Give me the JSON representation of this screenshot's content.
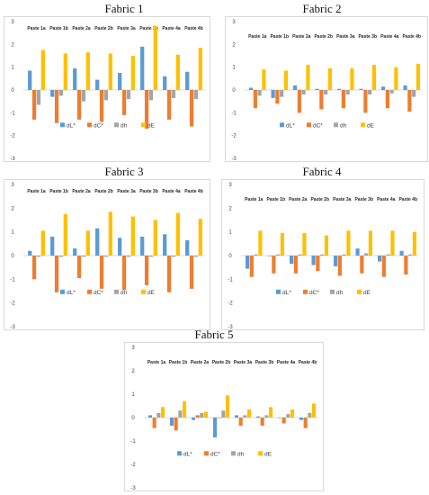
{
  "chart_data": [
    {
      "type": "bar",
      "title": "Fabric 1",
      "categories": [
        "Paste 1a",
        "Paste 1b",
        "Paste 2a",
        "Paste 2b",
        "Paste 3a",
        "Paste 3b",
        "Paste 4a",
        "Paste 4b"
      ],
      "ylim": [
        -3,
        3
      ],
      "yticks": [
        3,
        2,
        1,
        0,
        -1,
        -2,
        -3
      ],
      "legend_position": "bottom-center",
      "series": [
        {
          "name": "dL*",
          "color": "#5B9BD5",
          "values": [
            0.85,
            -0.3,
            0.95,
            0.45,
            0.75,
            1.9,
            0.6,
            0.8
          ]
        },
        {
          "name": "dC*",
          "color": "#ED7D31",
          "values": [
            -1.3,
            -1.45,
            -1.3,
            -1.4,
            -1.1,
            -1.7,
            -1.3,
            -1.6
          ]
        },
        {
          "name": "dh",
          "color": "#A5A5A5",
          "values": [
            -0.65,
            -0.25,
            -0.5,
            -0.45,
            -0.4,
            -0.45,
            -0.35,
            -0.4
          ]
        },
        {
          "name": "dE",
          "color": "#FFC000",
          "values": [
            1.75,
            1.6,
            1.65,
            1.6,
            1.5,
            2.8,
            1.55,
            1.85
          ]
        }
      ]
    },
    {
      "type": "bar",
      "title": "Fabric 2",
      "categories": [
        "Paste 1a",
        "Paste 1b",
        "Paste 2a",
        "Paste 2b",
        "Paste 3a",
        "Paste 3b",
        "Paste 4a",
        "Paste 4b"
      ],
      "ylim": [
        -3,
        3
      ],
      "yticks": [
        3,
        2,
        1,
        0,
        -1,
        -2,
        -3
      ],
      "legend_position": "bottom-center",
      "series": [
        {
          "name": "dL*",
          "color": "#5B9BD5",
          "values": [
            0.1,
            -0.35,
            0.2,
            0.05,
            0.05,
            0.05,
            0.15,
            0.2
          ]
        },
        {
          "name": "dC*",
          "color": "#ED7D31",
          "values": [
            -0.8,
            -0.6,
            -1.0,
            -0.85,
            -0.8,
            -1.0,
            -0.8,
            -0.95
          ]
        },
        {
          "name": "dh",
          "color": "#A5A5A5",
          "values": [
            -0.25,
            -0.3,
            -0.2,
            -0.2,
            -0.2,
            -0.2,
            -0.15,
            -0.3
          ]
        },
        {
          "name": "dE",
          "color": "#FFC000",
          "values": [
            0.9,
            0.85,
            1.1,
            0.95,
            0.95,
            1.1,
            1.0,
            1.15
          ]
        }
      ]
    },
    {
      "type": "bar",
      "title": "Fabric 3",
      "categories": [
        "Paste 1a",
        "Paste 1b",
        "Paste 2a",
        "Paste 2b",
        "Paste 3a",
        "Paste 3b",
        "Paste 4a",
        "Paste 4b"
      ],
      "ylim": [
        -3,
        3
      ],
      "yticks": [
        3,
        2,
        1,
        0,
        -1,
        -2,
        -3
      ],
      "legend_position": "bottom-center",
      "series": [
        {
          "name": "dL*",
          "color": "#5B9BD5",
          "values": [
            0.2,
            0.8,
            0.3,
            1.15,
            0.75,
            0.8,
            0.9,
            0.65
          ]
        },
        {
          "name": "dC*",
          "color": "#ED7D31",
          "values": [
            -1.0,
            -1.55,
            -0.95,
            -1.4,
            -1.45,
            -1.25,
            -1.55,
            -1.4
          ]
        },
        {
          "name": "dh",
          "color": "#A5A5A5",
          "values": [
            -0.05,
            -0.05,
            -0.05,
            -0.05,
            -0.05,
            -0.05,
            -0.05,
            -0.05
          ]
        },
        {
          "name": "dE",
          "color": "#FFC000",
          "values": [
            1.05,
            1.75,
            1.05,
            1.85,
            1.65,
            1.5,
            1.8,
            1.55
          ]
        }
      ]
    },
    {
      "type": "bar",
      "title": "Fabric 4",
      "categories": [
        "Paste 1a",
        "Paste 1b",
        "Paste 2a",
        "Paste 2b",
        "Paste 3a",
        "Paste 3b",
        "Paste 4a",
        "Paste 4b"
      ],
      "ylim": [
        -3,
        3
      ],
      "yticks": [
        3,
        2,
        1,
        0,
        -1,
        -2,
        -3
      ],
      "legend_position": "bottom-center",
      "series": [
        {
          "name": "dL*",
          "color": "#5B9BD5",
          "values": [
            -0.55,
            0.0,
            -0.35,
            -0.4,
            -0.45,
            0.3,
            -0.25,
            0.2
          ]
        },
        {
          "name": "dC*",
          "color": "#ED7D31",
          "values": [
            -0.9,
            -0.75,
            -0.75,
            -0.65,
            -0.85,
            -0.75,
            -0.9,
            -0.8
          ]
        },
        {
          "name": "dh",
          "color": "#A5A5A5",
          "values": [
            0.05,
            0.05,
            0.05,
            0.05,
            0.05,
            0.1,
            0.05,
            0.05
          ]
        },
        {
          "name": "dE",
          "color": "#FFC000",
          "values": [
            1.05,
            0.95,
            0.95,
            0.85,
            1.05,
            1.05,
            1.05,
            1.0
          ]
        }
      ]
    },
    {
      "type": "bar",
      "title": "Fabric 5",
      "categories": [
        "Paste 1a",
        "Paste 1b",
        "Paste 2a",
        "Paste 2b",
        "Paste 3a",
        "Paste 3b",
        "Paste 4a",
        "Paste 4b"
      ],
      "ylim": [
        -3,
        3
      ],
      "yticks": [
        3,
        2,
        1,
        0,
        -1,
        -2,
        -3
      ],
      "legend_position": "bottom-center",
      "series": [
        {
          "name": "dL*",
          "color": "#5B9BD5",
          "values": [
            0.1,
            -0.35,
            -0.1,
            -0.85,
            0.1,
            0.05,
            0.0,
            -0.1
          ]
        },
        {
          "name": "dC*",
          "color": "#ED7D31",
          "values": [
            -0.45,
            -0.55,
            0.1,
            0.0,
            -0.35,
            -0.35,
            -0.25,
            -0.45
          ]
        },
        {
          "name": "dh",
          "color": "#A5A5A5",
          "values": [
            0.2,
            0.3,
            0.2,
            0.3,
            0.1,
            0.1,
            0.15,
            0.2
          ]
        },
        {
          "name": "dE",
          "color": "#FFC000",
          "values": [
            0.45,
            0.7,
            0.25,
            0.95,
            0.35,
            0.45,
            0.35,
            0.6
          ]
        }
      ]
    }
  ]
}
